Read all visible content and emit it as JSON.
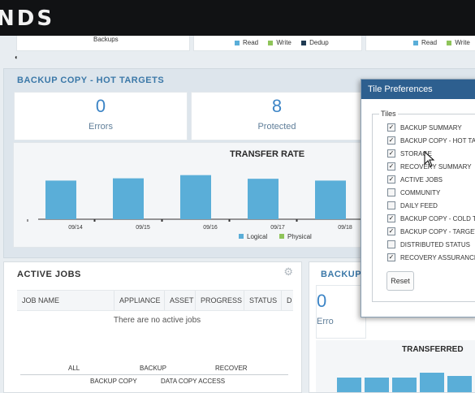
{
  "brand": {
    "text": "NDS"
  },
  "top_strip": {
    "left_label": "Backups",
    "legend_a": {
      "read": "Read",
      "write": "Write",
      "dedup": "Dedup"
    },
    "legend_b": {
      "read": "Read",
      "write": "Write"
    }
  },
  "hot_targets": {
    "title": "BACKUP COPY - HOT TARGETS",
    "errors": {
      "value": "0",
      "label": "Errors"
    },
    "protected": {
      "value": "8",
      "label": "Protected"
    }
  },
  "chart_data": {
    "type": "bar",
    "title": "TRANSFER RATE",
    "categories": [
      "09/14",
      "09/15",
      "09/16",
      "09/17",
      "09/18"
    ],
    "series": [
      {
        "name": "Logical",
        "values": [
          0.85,
          0.9,
          0.97,
          0.89,
          0.85
        ]
      }
    ],
    "legend": [
      "Logical",
      "Physical"
    ],
    "ylim": [
      0,
      1
    ],
    "grid": false,
    "legend_position": "bottom-right"
  },
  "colors": {
    "logical": "#5aaed8",
    "physical": "#8fc45a",
    "dedup": "#1f3a52",
    "accent": "#3b78a8"
  },
  "active_jobs": {
    "title": "ACTIVE JOBS",
    "columns": [
      "JOB NAME",
      "APPLIANCE",
      "ASSET",
      "PROGRESS",
      "STATUS",
      "D"
    ],
    "empty_message": "There are no active jobs",
    "filters": [
      "ALL",
      "BACKUP",
      "RECOVER",
      "BACKUP COPY",
      "DATA COPY ACCESS"
    ]
  },
  "right_panel": {
    "title": "BACKUP",
    "value": "0",
    "label": "Erro",
    "chart_title": "TRANSFERRED"
  },
  "tile_prefs": {
    "title": "Tile Preferences",
    "group_label": "Tiles",
    "options": [
      {
        "label": "BACKUP SUMMARY",
        "checked": true
      },
      {
        "label": "BACKUP COPY - HOT TAR",
        "checked": true
      },
      {
        "label": "STORAGE",
        "checked": true
      },
      {
        "label": "RECOVERY SUMMARY",
        "checked": true
      },
      {
        "label": "ACTIVE JOBS",
        "checked": true
      },
      {
        "label": "COMMUNITY",
        "checked": false
      },
      {
        "label": "DAILY FEED",
        "checked": false
      },
      {
        "label": "BACKUP COPY - COLD TA",
        "checked": true
      },
      {
        "label": "BACKUP COPY - TARGET",
        "checked": true
      },
      {
        "label": "DISTRIBUTED STATUS",
        "checked": false
      },
      {
        "label": "RECOVERY ASSURANCE",
        "checked": true
      }
    ],
    "reset_label": "Reset"
  }
}
